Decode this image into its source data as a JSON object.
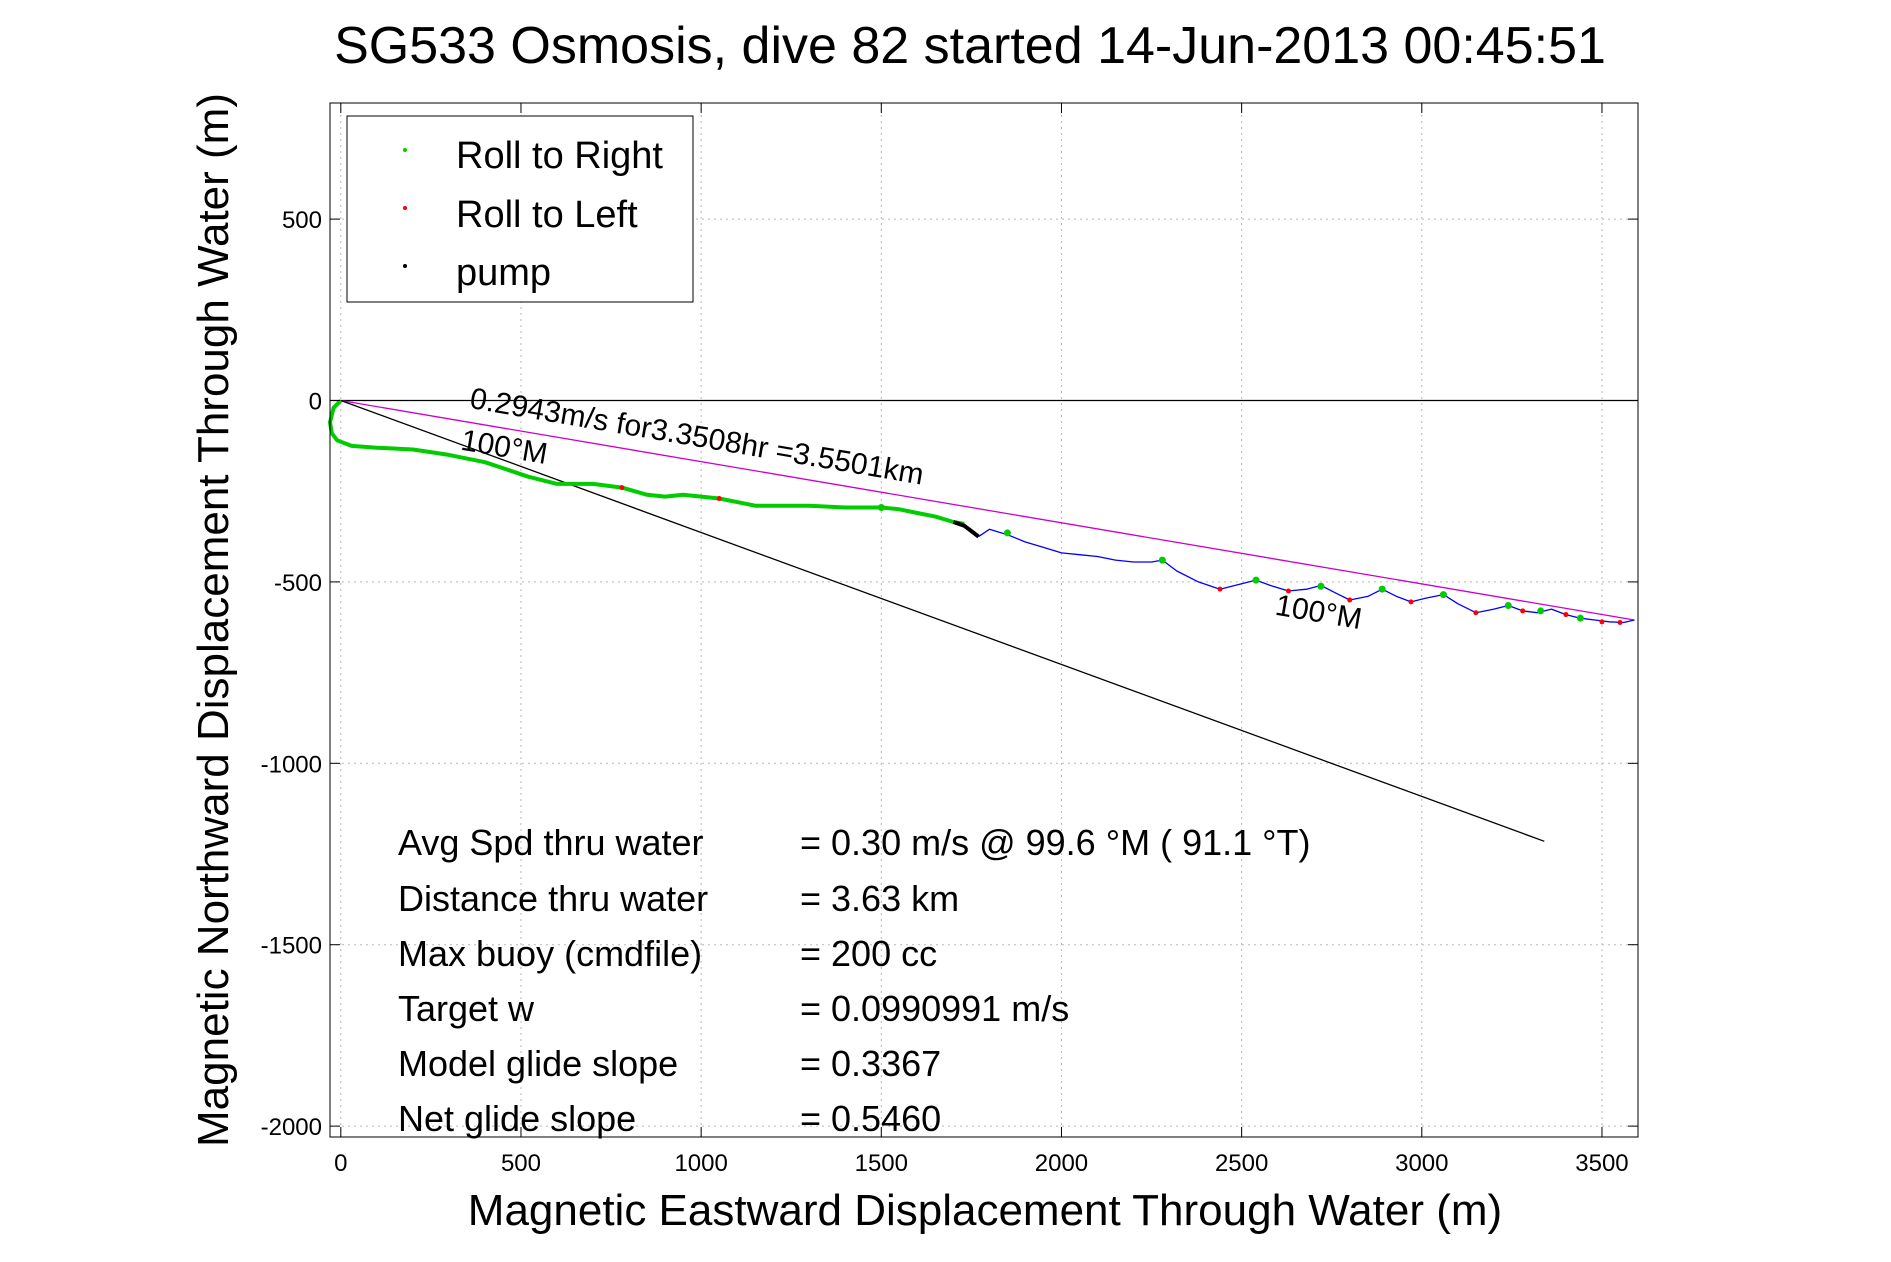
{
  "chart_data": {
    "type": "line",
    "title": "SG533 Osmosis, dive 82 started 14-Jun-2013 00:45:51",
    "xlabel": "Magnetic Eastward Displacement Through Water (m)",
    "ylabel": "Magnetic Northward Displacement Through Water (m)",
    "xlim": [
      -30,
      3600
    ],
    "ylim": [
      -2030,
      820
    ],
    "xticks": [
      0,
      500,
      1000,
      1500,
      2000,
      2500,
      3000,
      3500
    ],
    "yticks": [
      500,
      0,
      -500,
      -1000,
      -1500,
      -2000
    ],
    "grid": true,
    "legend_position": "top-left",
    "legend": [
      {
        "label": "Roll to Right",
        "color": "#00cc00"
      },
      {
        "label": "Roll to Left",
        "color": "#ff0000"
      },
      {
        "label": "pump",
        "color": "#000000"
      }
    ],
    "colors": {
      "track_dive": "#00cc00",
      "track_climb": "#0000ff",
      "average_line": "#cc00cc",
      "heading_line": "#000000",
      "zero_line": "#000000"
    },
    "series": [
      {
        "role": "track_dive",
        "x": [
          0,
          -20,
          -30,
          -25,
          -10,
          30,
          100,
          200,
          300,
          400,
          460,
          520,
          600,
          700,
          780,
          850,
          900,
          950,
          1000,
          1050,
          1100,
          1150,
          1200,
          1300,
          1400,
          1500,
          1550,
          1600,
          1650,
          1700,
          1730
        ],
        "y": [
          0,
          -20,
          -60,
          -90,
          -110,
          -125,
          -130,
          -135,
          -150,
          -170,
          -190,
          -210,
          -230,
          -230,
          -240,
          -260,
          -265,
          -260,
          -265,
          -270,
          -280,
          -290,
          -290,
          -290,
          -295,
          -295,
          -300,
          -310,
          -320,
          -335,
          -340
        ]
      },
      {
        "role": "pump",
        "x": [
          1700,
          1730,
          1750,
          1770
        ],
        "y": [
          -335,
          -345,
          -360,
          -375
        ]
      },
      {
        "role": "track_climb",
        "x": [
          1770,
          1800,
          1850,
          1900,
          1950,
          2000,
          2050,
          2100,
          2150,
          2200,
          2250,
          2280,
          2320,
          2380,
          2440,
          2500,
          2540,
          2580,
          2630,
          2680,
          2720,
          2760,
          2800,
          2850,
          2890,
          2930,
          2970,
          3010,
          3060,
          3100,
          3150,
          3200,
          3240,
          3280,
          3320,
          3360,
          3400,
          3440,
          3480,
          3520,
          3560,
          3590
        ],
        "y": [
          -375,
          -355,
          -370,
          -390,
          -405,
          -420,
          -425,
          -430,
          -440,
          -445,
          -445,
          -440,
          -470,
          -500,
          -520,
          -505,
          -495,
          -510,
          -525,
          -520,
          -510,
          -530,
          -550,
          -540,
          -520,
          -540,
          -555,
          -545,
          -535,
          -560,
          -585,
          -575,
          -565,
          -580,
          -585,
          -575,
          -590,
          -600,
          -605,
          -610,
          -612,
          -605
        ]
      }
    ],
    "markers": {
      "roll_right": {
        "x": [
          1500,
          1850,
          2280,
          2540,
          2720,
          2890,
          3060,
          3240,
          3330,
          3440
        ],
        "y": [
          -295,
          -365,
          -440,
          -495,
          -512,
          -520,
          -535,
          -565,
          -580,
          -600
        ]
      },
      "roll_left": {
        "x": [
          780,
          1050,
          2440,
          2630,
          2800,
          2970,
          3150,
          3280,
          3400,
          3500,
          3550
        ],
        "y": [
          -240,
          -270,
          -520,
          -525,
          -550,
          -555,
          -585,
          -580,
          -590,
          -610,
          -612
        ]
      }
    },
    "reference_lines": [
      {
        "role": "average",
        "x": [
          0,
          3590
        ],
        "y": [
          0,
          -605
        ]
      },
      {
        "role": "heading",
        "x": [
          0,
          3340
        ],
        "y": [
          0,
          -1215
        ]
      }
    ],
    "annotations": {
      "average": "0.2943m/s for3.3508hr =3.5501km",
      "heading_1": "100°M",
      "heading_2": "100°M"
    },
    "summary": [
      {
        "label": "Avg Spd thru water",
        "value": "=  0.30 m/s @  99.6 °M ( 91.1 °T)"
      },
      {
        "label": "Distance thru water",
        "value": "=  3.63 km"
      },
      {
        "label": "Max buoy (cmdfile)",
        "value": "= 200 cc"
      },
      {
        "label": "Target w",
        "value": "= 0.0990991 m/s"
      },
      {
        "label": "Model glide slope",
        "value": "= 0.3367"
      },
      {
        "label": "Net glide slope",
        "value": "= 0.5460"
      }
    ]
  }
}
